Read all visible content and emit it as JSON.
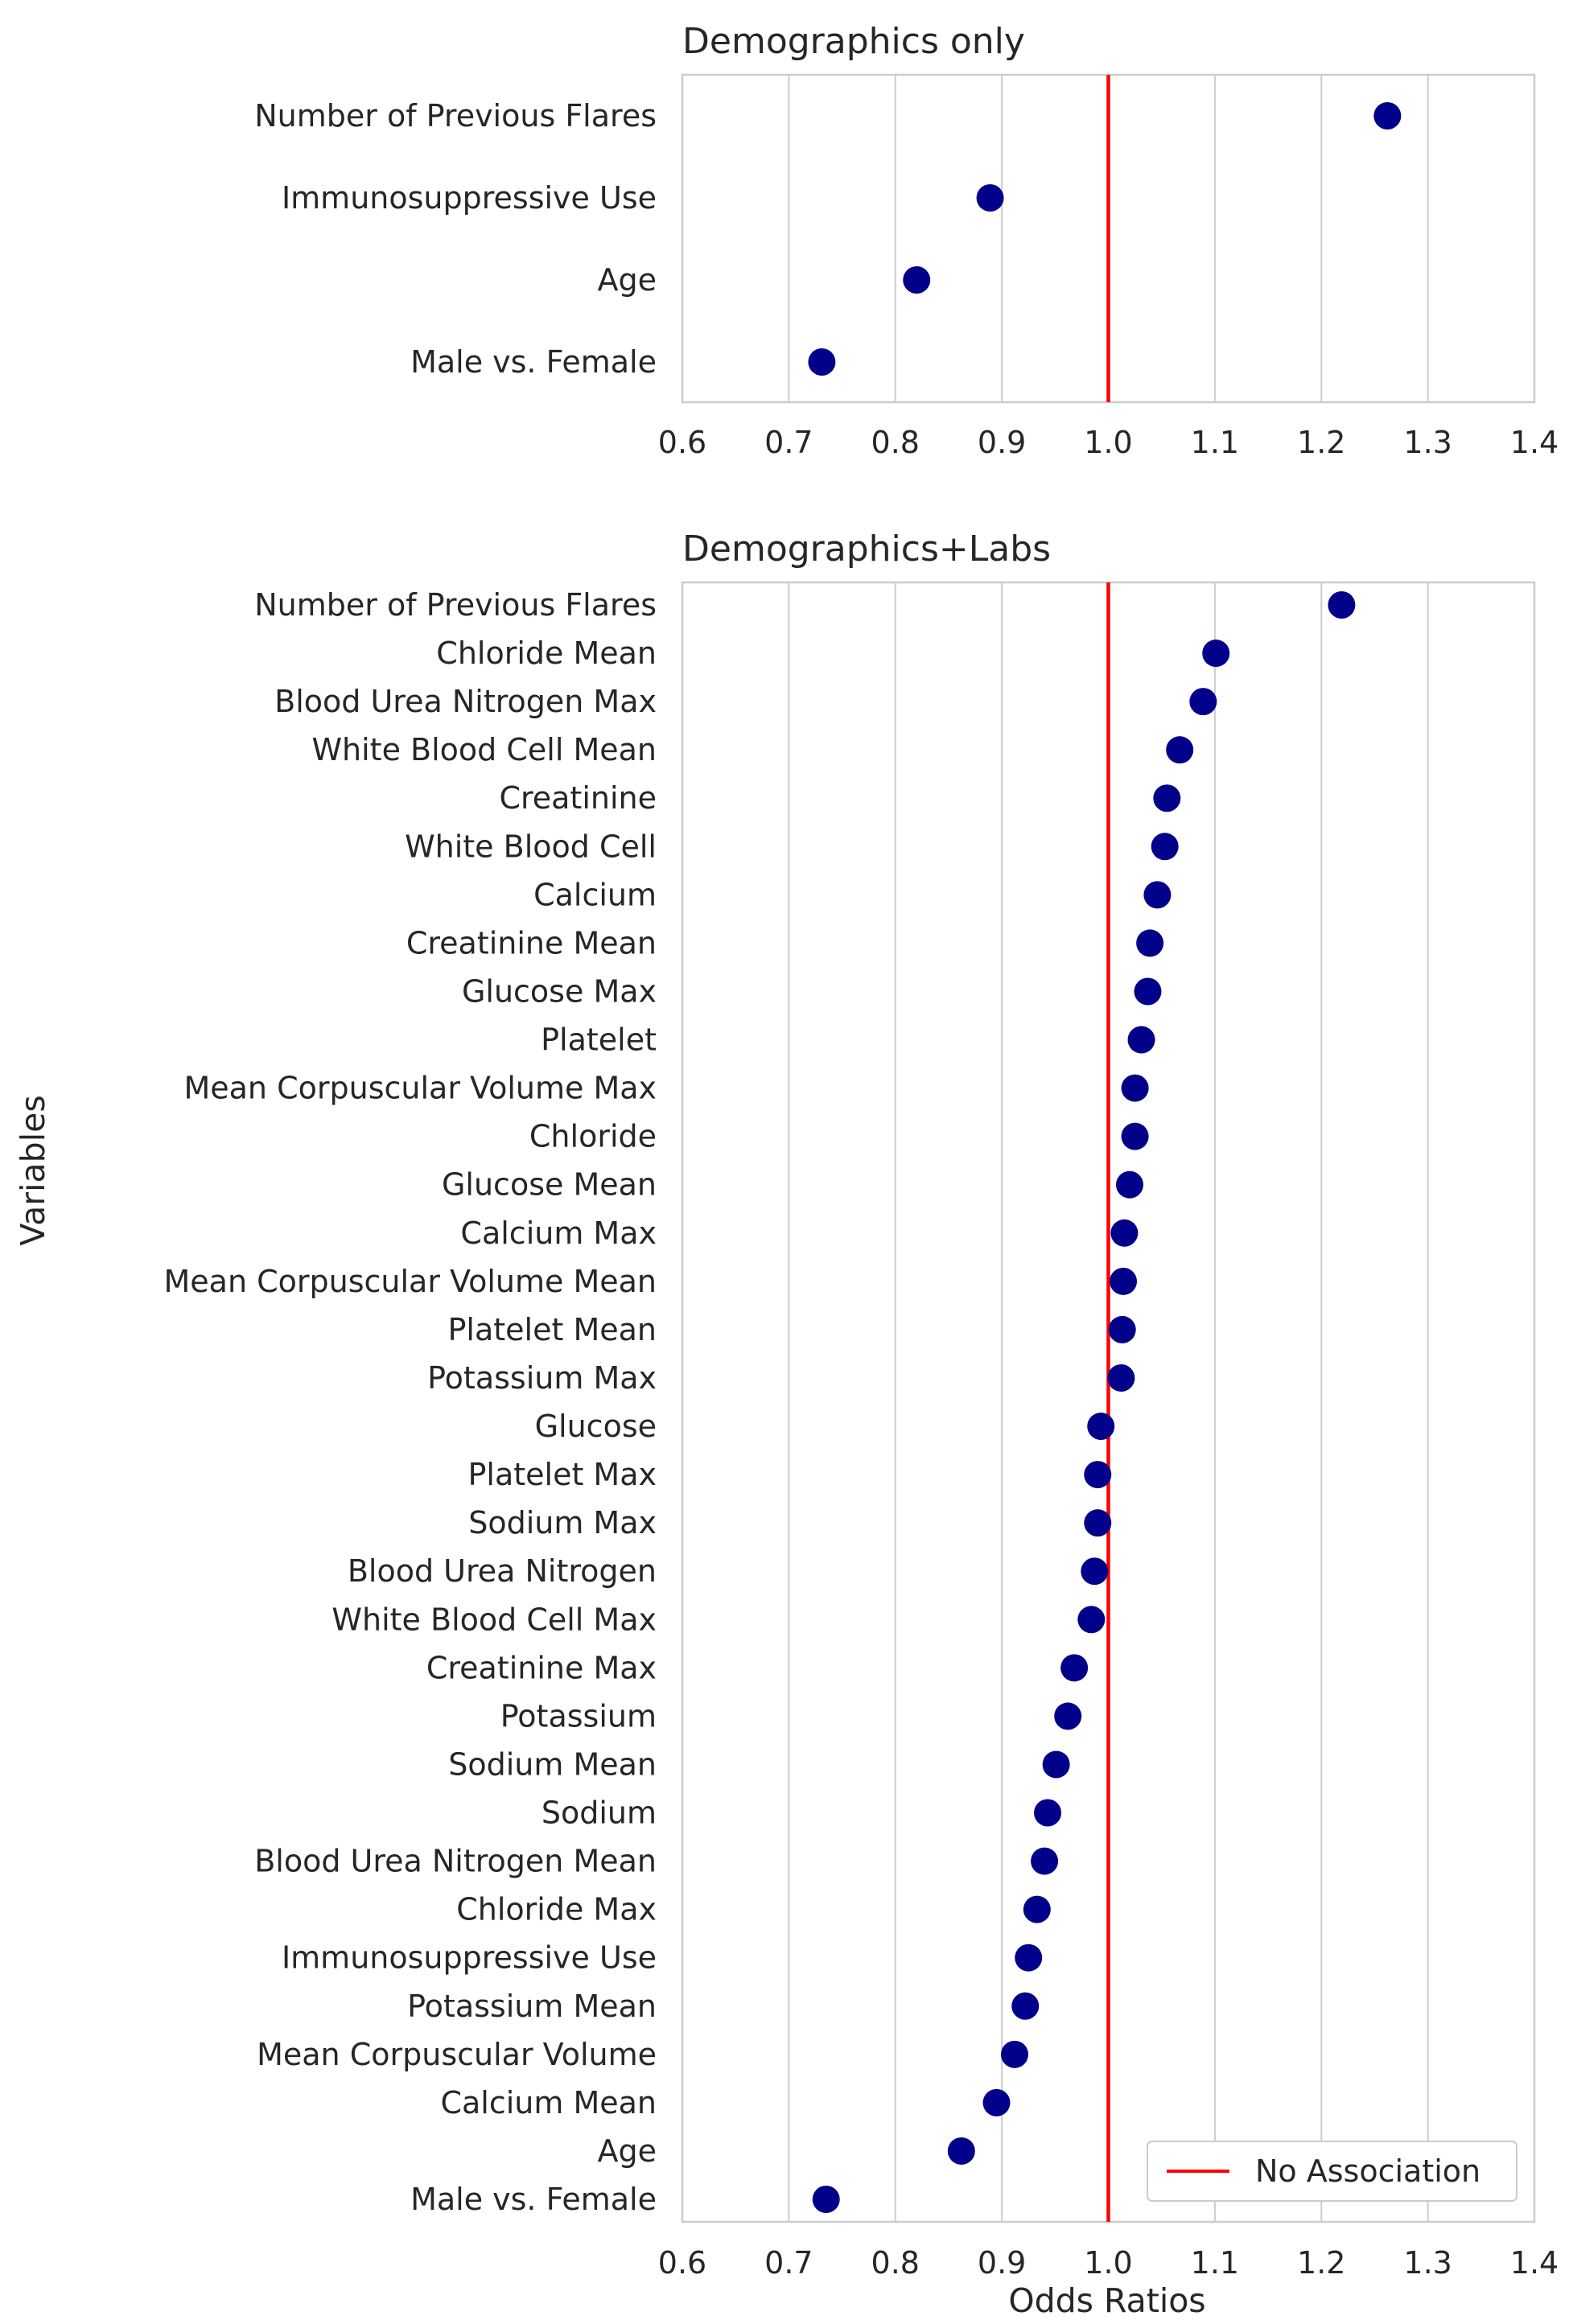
{
  "ylabel": "Variables",
  "colors": {
    "marker": "#00008b",
    "reference_line": "#ff0000",
    "grid": "#cccccc",
    "frame": "#cccccc"
  },
  "chart_data": [
    {
      "type": "scatter",
      "title": "Demographics only",
      "xlabel": "",
      "xlim": [
        0.6,
        1.4
      ],
      "xticks": [
        "0.6",
        "0.7",
        "0.8",
        "0.9",
        "1.0",
        "1.1",
        "1.2",
        "1.3",
        "1.4"
      ],
      "reference_line": 1.0,
      "grid": "vertical",
      "categories": [
        "Number of Previous Flares",
        "Immunosuppressive Use",
        "Age",
        "Male vs. Female"
      ],
      "values": [
        1.262,
        0.889,
        0.82,
        0.731
      ]
    },
    {
      "type": "scatter",
      "title": "Demographics+Labs",
      "xlabel": "Odds Ratios",
      "xlim": [
        0.6,
        1.4
      ],
      "xticks": [
        "0.6",
        "0.7",
        "0.8",
        "0.9",
        "1.0",
        "1.1",
        "1.2",
        "1.3",
        "1.4"
      ],
      "reference_line": 1.0,
      "grid": "vertical",
      "legend": {
        "label": "No Association",
        "position": "lower-right"
      },
      "categories": [
        "Number of Previous Flares",
        "Chloride Mean",
        "Blood Urea Nitrogen Max",
        "White Blood Cell Mean",
        "Creatinine",
        "White Blood Cell",
        "Calcium",
        "Creatinine Mean",
        "Glucose Max",
        "Platelet",
        "Mean Corpuscular Volume Max",
        "Chloride",
        "Glucose Mean",
        "Calcium Max",
        "Mean Corpuscular Volume Mean",
        "Platelet Mean",
        "Potassium Max",
        "Glucose",
        "Platelet Max",
        "Sodium Max",
        "Blood Urea Nitrogen",
        "White Blood Cell Max",
        "Creatinine Max",
        "Potassium",
        "Sodium Mean",
        "Sodium",
        "Blood Urea Nitrogen Mean",
        "Chloride Max",
        "Immunosuppressive Use",
        "Potassium Mean",
        "Mean Corpuscular Volume",
        "Calcium Mean",
        "Age",
        "Male vs. Female"
      ],
      "values": [
        1.219,
        1.101,
        1.089,
        1.067,
        1.055,
        1.053,
        1.046,
        1.039,
        1.037,
        1.031,
        1.025,
        1.025,
        1.02,
        1.015,
        1.014,
        1.013,
        1.012,
        0.993,
        0.99,
        0.99,
        0.987,
        0.984,
        0.968,
        0.962,
        0.951,
        0.943,
        0.94,
        0.933,
        0.925,
        0.922,
        0.912,
        0.895,
        0.862,
        0.735
      ]
    }
  ]
}
